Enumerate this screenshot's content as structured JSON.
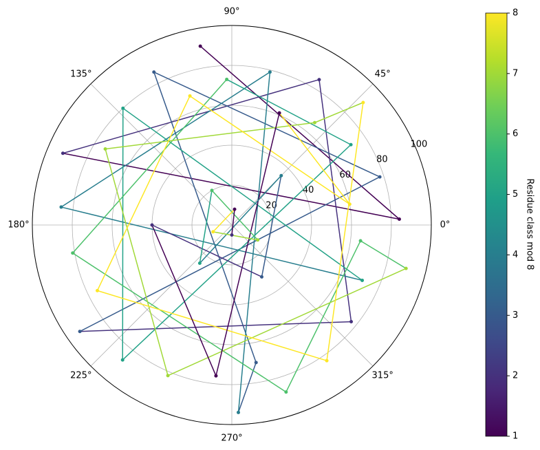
{
  "chart_data": {
    "type": "polar-line",
    "colorbar_label": "Residue class mod 8",
    "rlim": [
      0,
      100
    ],
    "rticks": [
      20,
      40,
      60,
      80,
      100
    ],
    "thetaticks": [
      {
        "value": 0,
        "label": "0°"
      },
      {
        "value": 45,
        "label": "45°"
      },
      {
        "value": 90,
        "label": "90°"
      },
      {
        "value": 135,
        "label": "135°"
      },
      {
        "value": 180,
        "label": "180°"
      },
      {
        "value": 225,
        "label": "225°"
      },
      {
        "value": 270,
        "label": "270°"
      },
      {
        "value": 315,
        "label": "315°"
      }
    ],
    "grid": true,
    "colormap": "viridis",
    "clim": [
      1,
      8
    ],
    "cticks": [
      1,
      2,
      3,
      4,
      5,
      6,
      7,
      8
    ],
    "series": [
      {
        "theta": [
          100,
          2,
          157,
          59,
          321,
          215,
          18,
          117,
          280,
          272,
          76,
          174,
          337,
          133,
          231,
          34,
          92,
          190,
          288,
          353,
          346,
          247,
          149,
          51,
          43,
          305,
          206,
          108,
          10,
          67,
          264,
          180,
          300,
          45,
          230,
          120,
          330,
          200,
          80,
          270
        ],
        "r": [
          91,
          84,
          92,
          85,
          77,
          93,
          78,
          86,
          70,
          94,
          79,
          86,
          71,
          80,
          87,
          72,
          73,
          81,
          88,
          65,
          90,
          82,
          74,
          66,
          90,
          83,
          75,
          68,
          60,
          61,
          76,
          40,
          30,
          35,
          25,
          20,
          15,
          10,
          8,
          5
        ],
        "class": [
          1,
          1,
          2,
          2,
          2,
          3,
          3,
          3,
          3,
          4,
          4,
          4,
          5,
          5,
          5,
          5,
          6,
          6,
          6,
          6,
          7,
          7,
          7,
          7,
          8,
          8,
          8,
          8,
          8,
          1,
          1,
          2,
          3,
          4,
          5,
          6,
          7,
          8,
          1,
          2
        ]
      }
    ]
  }
}
